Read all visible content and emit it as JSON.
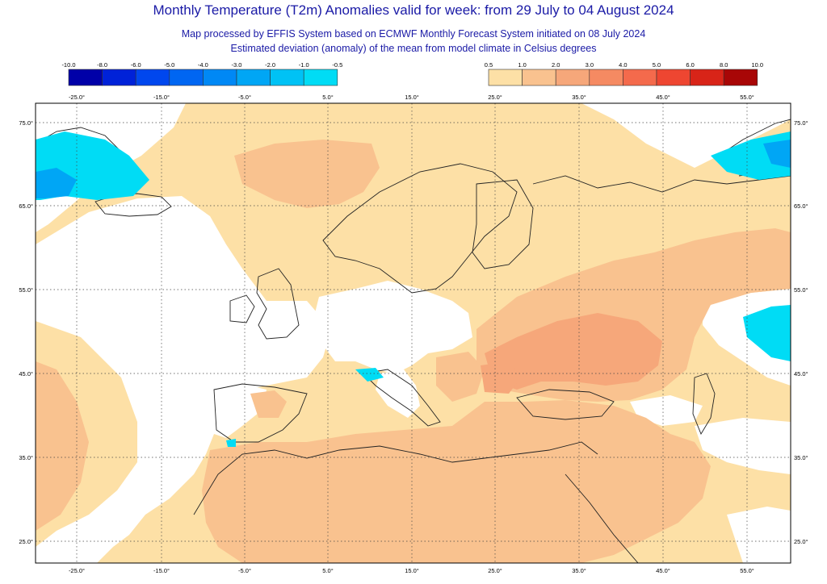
{
  "title": "Monthly Temperature (T2m) Anomalies valid for week: from 29 July to 04 August 2024",
  "subtitle_1": "Map processed by EFFIS System based on ECMWF Monthly Forecast System initiated on 08 July 2024",
  "subtitle_2": "Estimated deviation (anomaly) of the mean from model climate in Celsius degrees",
  "legend": {
    "negative": {
      "labels": [
        "-10.0",
        "-8.0",
        "-6.0",
        "-5.0",
        "-4.0",
        "-3.0",
        "-2.0",
        "-1.0",
        "-0.5"
      ],
      "colors": [
        "#0000a8",
        "#0022d8",
        "#0047ee",
        "#0066f2",
        "#0088f5",
        "#00a6f5",
        "#00c2f5",
        "#00dcf5"
      ]
    },
    "positive": {
      "labels": [
        "0.5",
        "1.0",
        "2.0",
        "3.0",
        "4.0",
        "5.0",
        "6.0",
        "8.0",
        "10.0"
      ],
      "colors": [
        "#fde0a6",
        "#f9c28f",
        "#f6a77a",
        "#f58a62",
        "#f46a4c",
        "#ee4631",
        "#d82418",
        "#a80606"
      ]
    }
  },
  "axes": {
    "lon_labels": [
      "-25.0°",
      "-15.0°",
      "-5.0°",
      "5.0°",
      "15.0°",
      "25.0°",
      "35.0°",
      "45.0°",
      "55.0°"
    ],
    "lat_labels": [
      "75.0°",
      "65.0°",
      "55.0°",
      "45.0°",
      "35.0°",
      "25.0°"
    ]
  },
  "map": {
    "land_fill": "#ffffff",
    "border_color": "#222222",
    "grid_color": "#444444"
  }
}
